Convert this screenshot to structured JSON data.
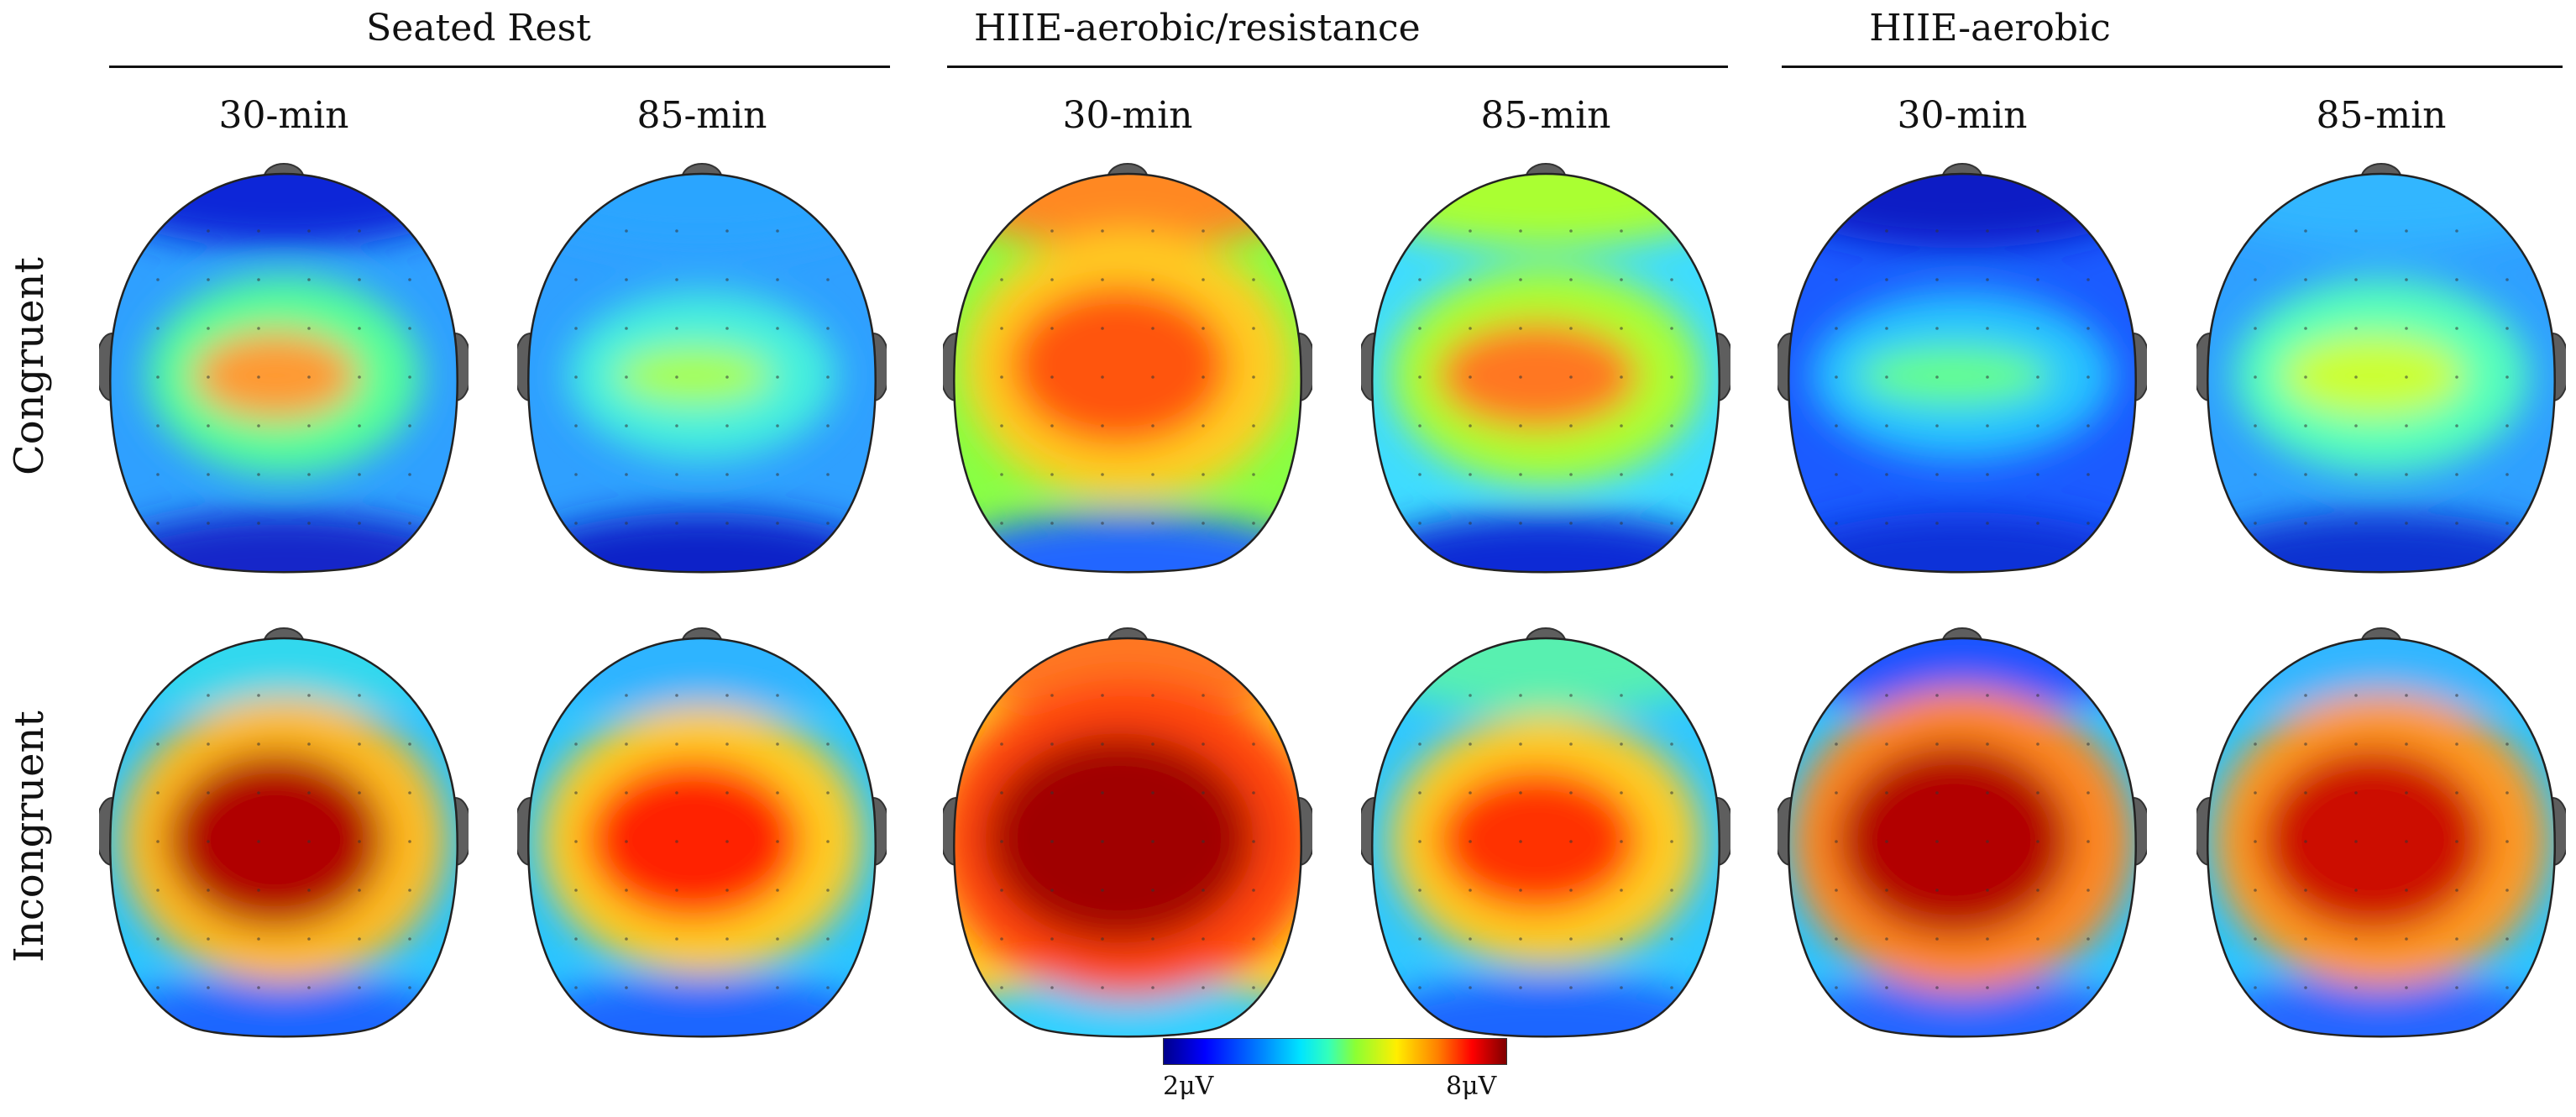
{
  "figure": {
    "groups": [
      {
        "label": "Seated Rest"
      },
      {
        "label": "HIIE-aerobic/resistance"
      },
      {
        "label": "HIIE-aerobic"
      }
    ],
    "time_labels": [
      "30-min",
      "85-min",
      "30-min",
      "85-min",
      "30-min",
      "85-min"
    ],
    "rows": [
      {
        "label": "Congruent"
      },
      {
        "label": "Incongruent"
      }
    ],
    "colorbar": {
      "min_label": "2μV",
      "max_label": "8μV",
      "min_value": 2,
      "max_value": 8,
      "unit": "μV"
    },
    "maps": [
      {
        "row": "Congruent",
        "group": "Seated Rest",
        "time": "30-min",
        "peak_uv": 6.3
      },
      {
        "row": "Congruent",
        "group": "Seated Rest",
        "time": "85-min",
        "peak_uv": 5.0
      },
      {
        "row": "Congruent",
        "group": "HIIE-aerobic/resistance",
        "time": "30-min",
        "peak_uv": 6.8
      },
      {
        "row": "Congruent",
        "group": "HIIE-aerobic/resistance",
        "time": "85-min",
        "peak_uv": 6.6
      },
      {
        "row": "Congruent",
        "group": "HIIE-aerobic",
        "time": "30-min",
        "peak_uv": 4.6
      },
      {
        "row": "Congruent",
        "group": "HIIE-aerobic",
        "time": "85-min",
        "peak_uv": 6.0
      },
      {
        "row": "Incongruent",
        "group": "Seated Rest",
        "time": "30-min",
        "peak_uv": 7.8
      },
      {
        "row": "Incongruent",
        "group": "Seated Rest",
        "time": "85-min",
        "peak_uv": 7.1
      },
      {
        "row": "Incongruent",
        "group": "HIIE-aerobic/resistance",
        "time": "30-min",
        "peak_uv": 7.9
      },
      {
        "row": "Incongruent",
        "group": "HIIE-aerobic/resistance",
        "time": "85-min",
        "peak_uv": 6.9
      },
      {
        "row": "Incongruent",
        "group": "HIIE-aerobic",
        "time": "30-min",
        "peak_uv": 7.8
      },
      {
        "row": "Incongruent",
        "group": "HIIE-aerobic",
        "time": "85-min",
        "peak_uv": 7.4
      }
    ]
  }
}
